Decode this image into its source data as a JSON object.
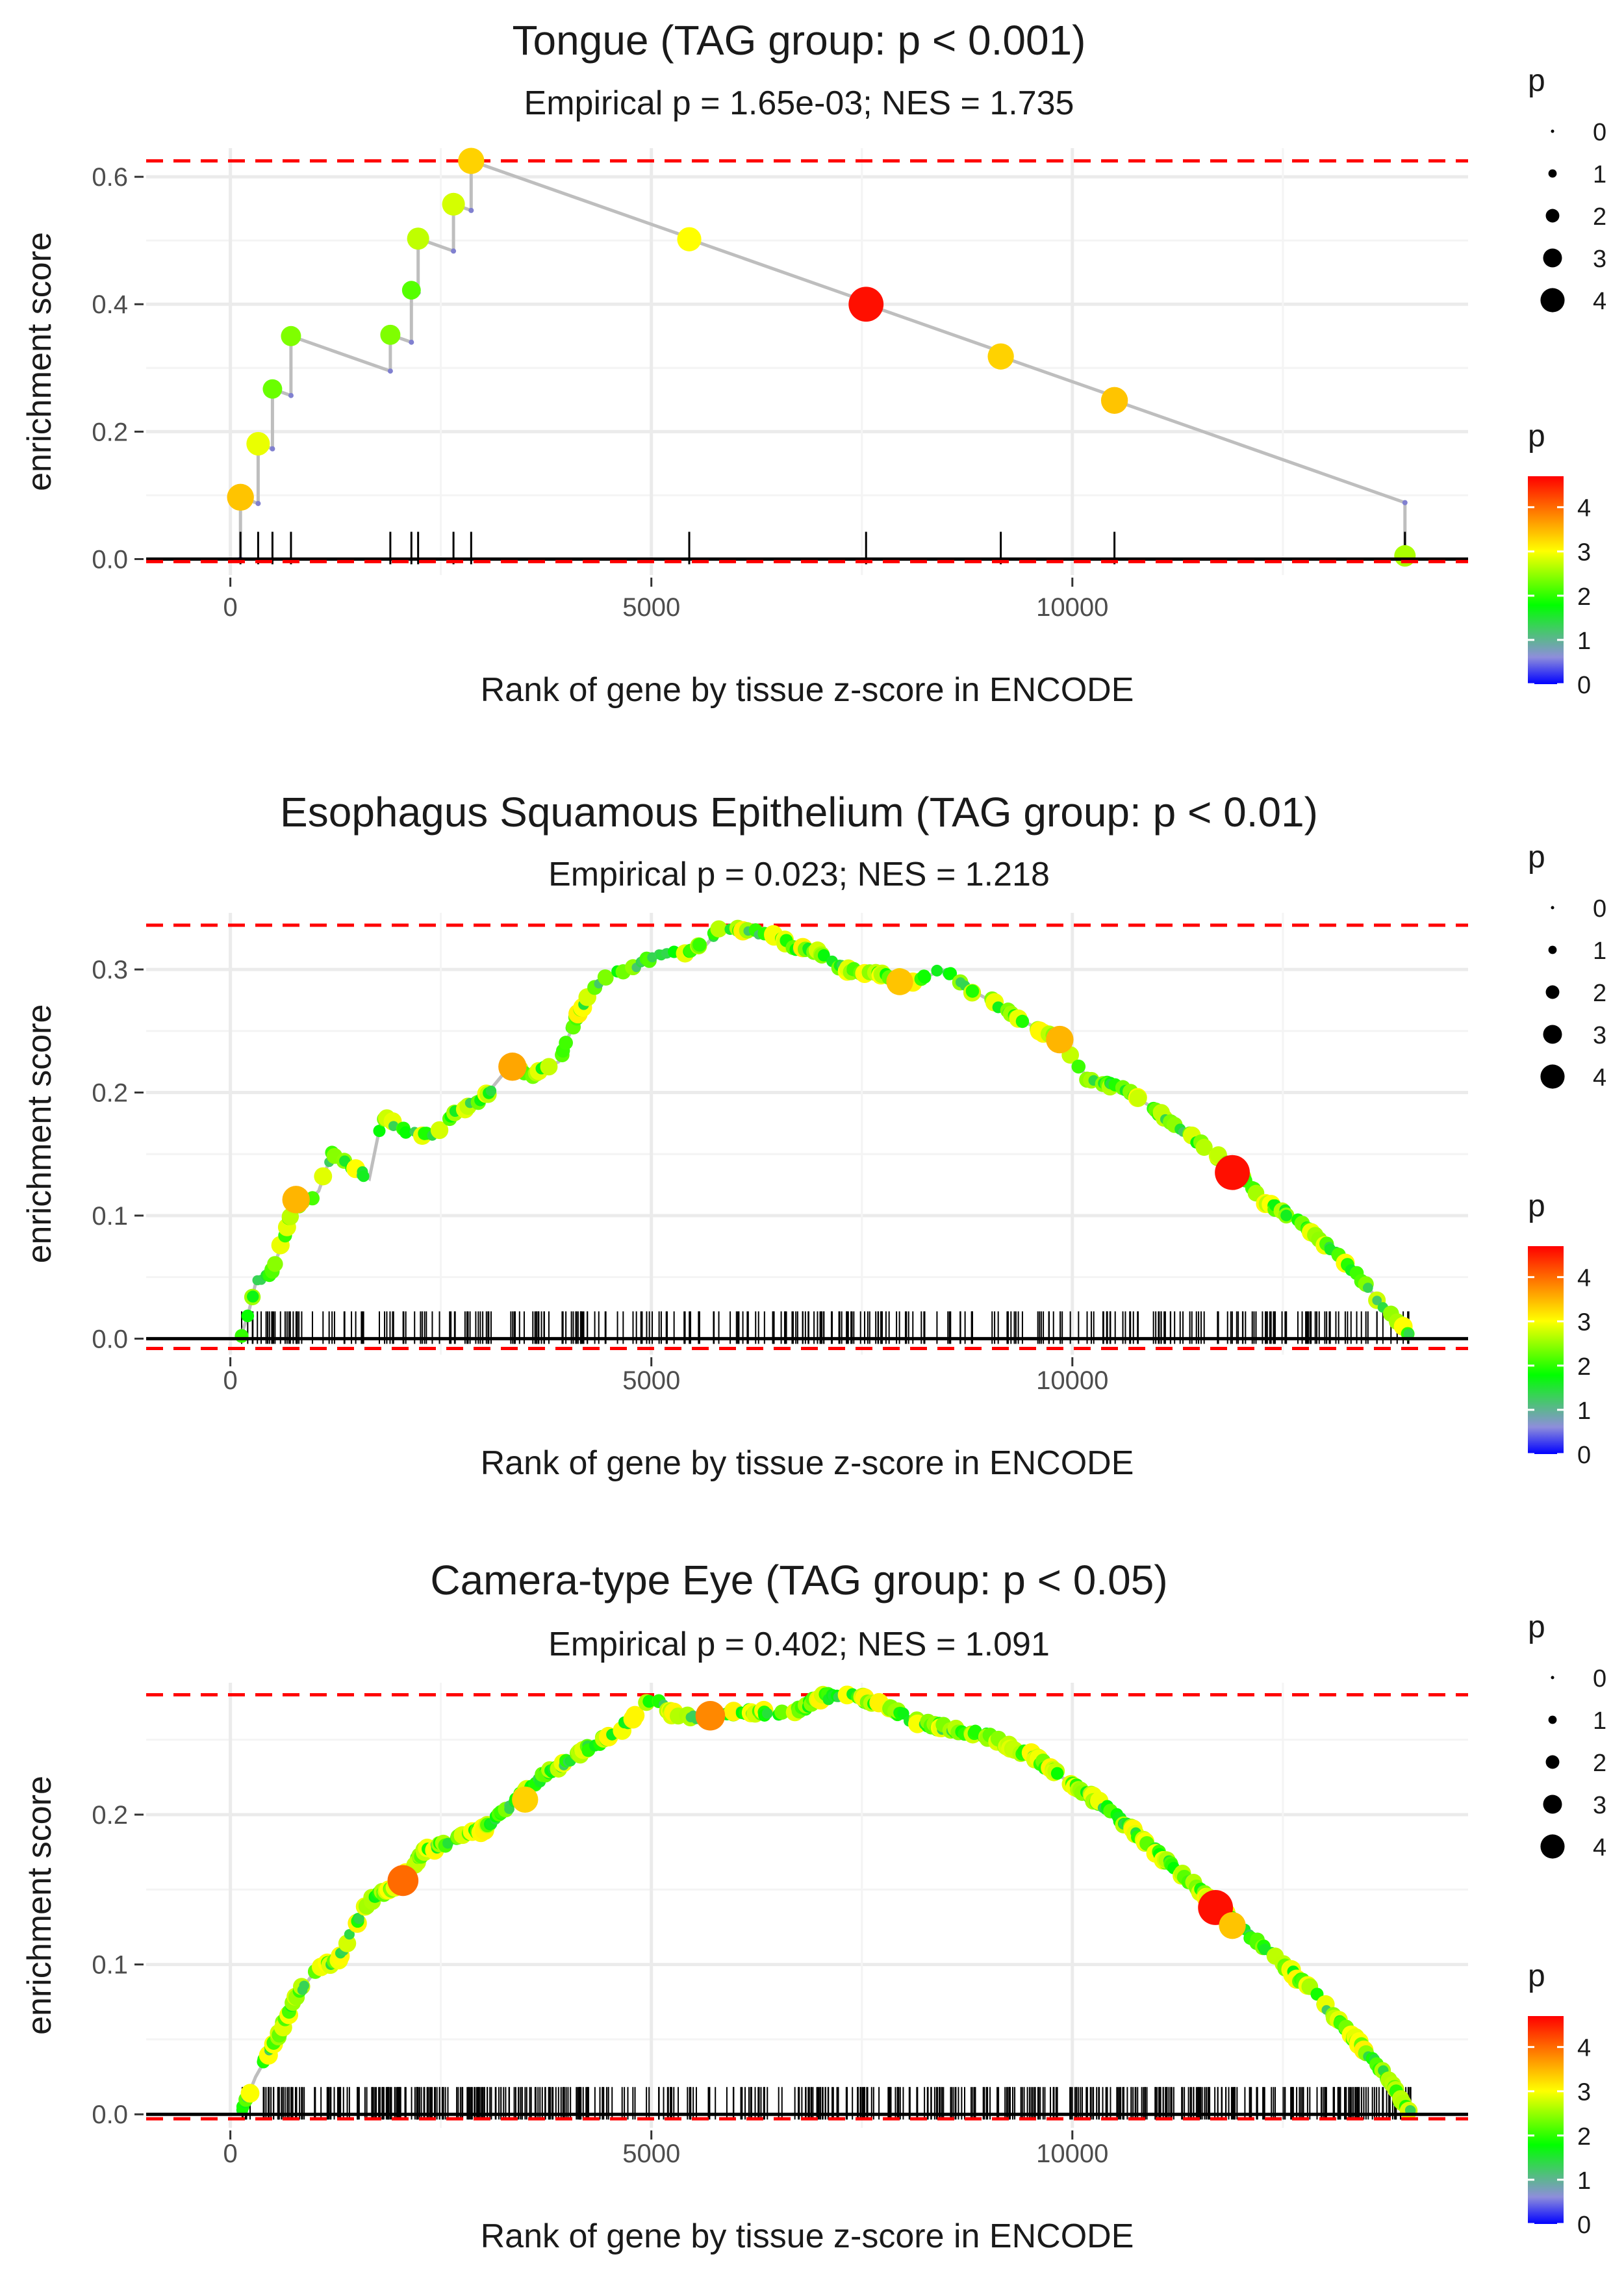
{
  "chart_data": [
    {
      "type": "line",
      "title": "Tongue (TAG group: p < 0.001)",
      "subtitle": "Empirical p = 1.65e-03; NES = 1.735",
      "xlabel": "Rank of gene by tissue z-score in ENCODE",
      "ylabel": "enrichment score",
      "xlim": [
        -1000,
        14700
      ],
      "ylim": [
        -0.025,
        0.645
      ],
      "x_ticks": [
        0,
        5000,
        10000
      ],
      "x_tick_labels": [
        "0",
        "5000",
        "10000"
      ],
      "y_ticks": [
        0.0,
        0.2,
        0.4,
        0.6
      ],
      "y_tick_labels": [
        "0.0",
        "0.2",
        "0.4",
        "0.6"
      ],
      "max_es": 0.625,
      "min_es": -0.004,
      "decay_per_gene": 4.65e-05,
      "hits": [
        {
          "x": 120,
          "y": 0.097,
          "p": 3.4
        },
        {
          "x": 330,
          "y": 0.181,
          "p": 2.9
        },
        {
          "x": 500,
          "y": 0.267,
          "p": 2.3
        },
        {
          "x": 720,
          "y": 0.35,
          "p": 2.4
        },
        {
          "x": 1900,
          "y": 0.352,
          "p": 2.4
        },
        {
          "x": 2150,
          "y": 0.422,
          "p": 2.2
        },
        {
          "x": 2230,
          "y": 0.503,
          "p": 2.7
        },
        {
          "x": 2650,
          "y": 0.557,
          "p": 2.8
        },
        {
          "x": 2860,
          "y": 0.625,
          "p": 3.3
        },
        {
          "x": 5450,
          "y": 0.502,
          "p": 3.0
        },
        {
          "x": 7550,
          "y": 0.4,
          "p": 4.6
        },
        {
          "x": 9150,
          "y": 0.318,
          "p": 3.3
        },
        {
          "x": 10500,
          "y": 0.249,
          "p": 3.4
        },
        {
          "x": 13950,
          "y": 0.005,
          "p": 2.6
        }
      ],
      "legend_size": {
        "title": "p",
        "labels": [
          "0",
          "1",
          "2",
          "3",
          "4"
        ]
      },
      "legend_color": {
        "title": "p",
        "labels": [
          "0",
          "1",
          "2",
          "3",
          "4"
        ],
        "colors": [
          "#0000ff",
          "#8e8edb",
          "#00ff00",
          "#ffff00",
          "#ff8800",
          "#ff0000"
        ]
      }
    },
    {
      "type": "line",
      "title": "Esophagus Squamous Epithelium (TAG group: p < 0.01)",
      "subtitle": "Empirical p = 0.023; NES = 1.218",
      "xlabel": "Rank of gene by tissue z-score in ENCODE",
      "ylabel": "enrichment score",
      "xlim": [
        -1000,
        14700
      ],
      "ylim": [
        -0.013,
        0.346
      ],
      "x_ticks": [
        0,
        5000,
        10000
      ],
      "x_tick_labels": [
        "0",
        "5000",
        "10000"
      ],
      "y_ticks": [
        0.0,
        0.1,
        0.2,
        0.3
      ],
      "y_tick_labels": [
        "0.0",
        "0.1",
        "0.2",
        "0.3"
      ],
      "max_es": 0.336,
      "min_es": -0.008,
      "curve_points": [
        [
          120,
          0.0
        ],
        [
          230,
          0.025
        ],
        [
          300,
          0.045
        ],
        [
          500,
          0.055
        ],
        [
          650,
          0.085
        ],
        [
          750,
          0.11
        ],
        [
          900,
          0.11
        ],
        [
          1050,
          0.12
        ],
        [
          1200,
          0.15
        ],
        [
          1450,
          0.14
        ],
        [
          1650,
          0.13
        ],
        [
          1800,
          0.18
        ],
        [
          2050,
          0.17
        ],
        [
          2400,
          0.165
        ],
        [
          2700,
          0.185
        ],
        [
          3000,
          0.195
        ],
        [
          3300,
          0.22
        ],
        [
          3600,
          0.215
        ],
        [
          3900,
          0.225
        ],
        [
          4100,
          0.26
        ],
        [
          4300,
          0.285
        ],
        [
          4500,
          0.295
        ],
        [
          4750,
          0.3
        ],
        [
          5000,
          0.31
        ],
        [
          5300,
          0.313
        ],
        [
          5650,
          0.32
        ],
        [
          5850,
          0.336
        ],
        [
          6100,
          0.33
        ],
        [
          6400,
          0.33
        ],
        [
          6700,
          0.318
        ],
        [
          6950,
          0.315
        ],
        [
          7300,
          0.3
        ],
        [
          7800,
          0.295
        ],
        [
          8150,
          0.29
        ],
        [
          8450,
          0.3
        ],
        [
          8750,
          0.285
        ],
        [
          9150,
          0.27
        ],
        [
          9500,
          0.255
        ],
        [
          9850,
          0.243
        ],
        [
          10200,
          0.21
        ],
        [
          10550,
          0.205
        ],
        [
          10900,
          0.19
        ],
        [
          11250,
          0.172
        ],
        [
          11600,
          0.155
        ],
        [
          11950,
          0.135
        ],
        [
          12300,
          0.11
        ],
        [
          12600,
          0.1
        ],
        [
          12950,
          0.08
        ],
        [
          13350,
          0.055
        ],
        [
          13650,
          0.03
        ],
        [
          13900,
          0.01
        ],
        [
          14020,
          0.002
        ]
      ],
      "large_hits": [
        {
          "x": 780,
          "y": 0.113,
          "p": 3.5
        },
        {
          "x": 3350,
          "y": 0.221,
          "p": 3.6
        },
        {
          "x": 7950,
          "y": 0.29,
          "p": 3.4
        },
        {
          "x": 9850,
          "y": 0.243,
          "p": 3.5
        },
        {
          "x": 11900,
          "y": 0.135,
          "p": 4.6
        }
      ],
      "rug_seed": 21,
      "rug_count": 330,
      "legend_size": {
        "title": "p",
        "labels": [
          "0",
          "1",
          "2",
          "3",
          "4"
        ]
      },
      "legend_color": {
        "title": "p",
        "labels": [
          "0",
          "1",
          "2",
          "3",
          "4"
        ],
        "colors": [
          "#0000ff",
          "#8e8edb",
          "#00ff00",
          "#ffff00",
          "#ff8800",
          "#ff0000"
        ]
      }
    },
    {
      "type": "line",
      "title": "Camera-type Eye (TAG group: p < 0.05)",
      "subtitle": "Empirical p = 0.402; NES = 1.091",
      "xlabel": "Rank of gene by tissue z-score in ENCODE",
      "ylabel": "enrichment score",
      "xlim": [
        -1000,
        14700
      ],
      "ylim": [
        -0.009,
        0.288
      ],
      "x_ticks": [
        0,
        5000,
        10000
      ],
      "x_tick_labels": [
        "0",
        "5000",
        "10000"
      ],
      "y_ticks": [
        0.0,
        0.1,
        0.2
      ],
      "y_tick_labels": [
        "0.0",
        "0.1",
        "0.2"
      ],
      "max_es": 0.28,
      "min_es": -0.003,
      "curve_points": [
        [
          120,
          0.0
        ],
        [
          300,
          0.025
        ],
        [
          500,
          0.045
        ],
        [
          800,
          0.08
        ],
        [
          1000,
          0.095
        ],
        [
          1300,
          0.105
        ],
        [
          1600,
          0.14
        ],
        [
          2000,
          0.155
        ],
        [
          2300,
          0.175
        ],
        [
          2700,
          0.185
        ],
        [
          3000,
          0.19
        ],
        [
          3300,
          0.205
        ],
        [
          3700,
          0.225
        ],
        [
          4100,
          0.24
        ],
        [
          4600,
          0.255
        ],
        [
          5000,
          0.278
        ],
        [
          5300,
          0.265
        ],
        [
          5700,
          0.265
        ],
        [
          6100,
          0.268
        ],
        [
          6700,
          0.268
        ],
        [
          7000,
          0.278
        ],
        [
          7300,
          0.28
        ],
        [
          7700,
          0.275
        ],
        [
          8100,
          0.263
        ],
        [
          8500,
          0.258
        ],
        [
          9000,
          0.252
        ],
        [
          9500,
          0.24
        ],
        [
          10000,
          0.22
        ],
        [
          10400,
          0.205
        ],
        [
          10800,
          0.185
        ],
        [
          11200,
          0.165
        ],
        [
          11600,
          0.145
        ],
        [
          12000,
          0.125
        ],
        [
          12400,
          0.105
        ],
        [
          12800,
          0.085
        ],
        [
          13200,
          0.06
        ],
        [
          13600,
          0.035
        ],
        [
          13900,
          0.01
        ],
        [
          14050,
          0.0
        ]
      ],
      "large_hits": [
        {
          "x": 2050,
          "y": 0.156,
          "p": 4.0
        },
        {
          "x": 3500,
          "y": 0.21,
          "p": 3.3
        },
        {
          "x": 5700,
          "y": 0.266,
          "p": 3.8
        },
        {
          "x": 11700,
          "y": 0.138,
          "p": 4.6
        },
        {
          "x": 11900,
          "y": 0.126,
          "p": 3.4
        }
      ],
      "rug_seed": 77,
      "rug_count": 560,
      "legend_size": {
        "title": "p",
        "labels": [
          "0",
          "1",
          "2",
          "3",
          "4"
        ]
      },
      "legend_color": {
        "title": "p",
        "labels": [
          "0",
          "1",
          "2",
          "3",
          "4"
        ],
        "colors": [
          "#0000ff",
          "#8e8edb",
          "#00ff00",
          "#ffff00",
          "#ff8800",
          "#ff0000"
        ]
      }
    }
  ]
}
